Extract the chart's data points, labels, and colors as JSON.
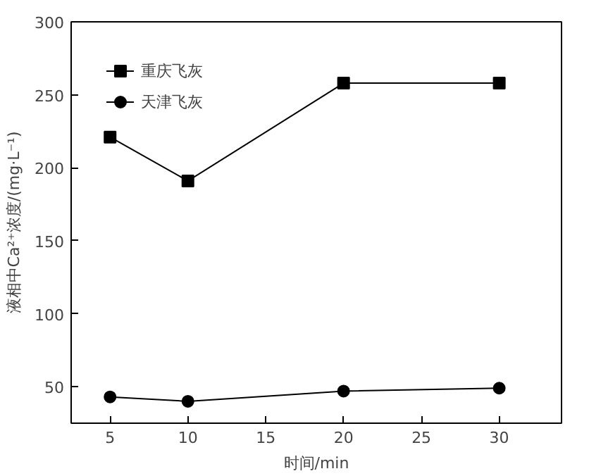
{
  "chart_data": {
    "type": "line",
    "xlabel": "时间/min",
    "ylabel": "液相中Ca²⁺浓度/(mg·L⁻¹)",
    "x": [
      5,
      10,
      20,
      30
    ],
    "series": [
      {
        "name": "重庆飞灰",
        "color": "#000000",
        "marker": "square",
        "values": [
          221,
          191,
          258,
          258
        ]
      },
      {
        "name": "天津飞灰",
        "color": "#000000",
        "marker": "circle",
        "values": [
          43,
          40,
          47,
          49
        ]
      }
    ],
    "xlim": [
      2.5,
      34
    ],
    "xticks": [
      5,
      10,
      15,
      20,
      25,
      30
    ],
    "ylim": [
      25,
      300
    ],
    "yticks": [
      50,
      100,
      150,
      200,
      250,
      300
    ],
    "grid": false,
    "legend": "top left",
    "line_style": "solid"
  }
}
